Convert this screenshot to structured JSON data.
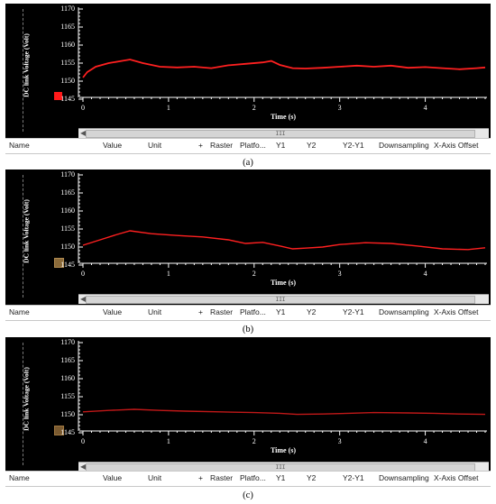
{
  "panels": [
    {
      "caption": "(a)",
      "ylabel": "DC link Voltage (Volt)",
      "yticks": [
        "1170",
        "1165",
        "1160",
        "1155",
        "1150",
        "1145"
      ],
      "xticks": [
        "0",
        "1",
        "2",
        "3",
        "4"
      ],
      "xlabel": "Time (s)",
      "marker_color": "#ff1a1a",
      "scroll_thumb": "III",
      "scroll_left": "◀",
      "columns": [
        "Name",
        "Value",
        "Unit",
        "+",
        "Raster",
        "Platfo...",
        "Y1",
        "Y2",
        "Y2-Y1",
        "Downsampling",
        "X-Axis Offset"
      ]
    },
    {
      "caption": "(b)",
      "ylabel": "DC link Voltage (Volt)",
      "yticks": [
        "1170",
        "1165",
        "1160",
        "1155",
        "1150",
        "1145"
      ],
      "xticks": [
        "0",
        "1",
        "2",
        "3",
        "4"
      ],
      "xlabel": "Time (s)",
      "marker_color": "#8a6a3a",
      "scroll_thumb": "III",
      "scroll_left": "◀",
      "columns": [
        "Name",
        "Value",
        "Unit",
        "+",
        "Raster",
        "Platfo...",
        "Y1",
        "Y2",
        "Y2-Y1",
        "Downsampling",
        "X-Axis Offset"
      ]
    },
    {
      "caption": "(c)",
      "ylabel": "DC link Voltage (Volt)",
      "yticks": [
        "1170",
        "1165",
        "1160",
        "1155",
        "1150",
        "1145"
      ],
      "xticks": [
        "0",
        "1",
        "2",
        "3",
        "4"
      ],
      "xlabel": "Time (s)",
      "marker_color": "#7a5a30",
      "scroll_thumb": "III",
      "scroll_left": "◀",
      "columns": [
        "Name",
        "Value",
        "Unit",
        "+",
        "Raster",
        "Platfo...",
        "Y1",
        "Y2",
        "Y2-Y1",
        "Downsampling",
        "X-Axis Offset"
      ]
    }
  ],
  "chart_data": [
    {
      "type": "line",
      "ylabel": "DC link Voltage (Volt)",
      "xlabel": "Time (s)",
      "ylim": [
        1145,
        1170
      ],
      "xlim": [
        0,
        4.7
      ],
      "series": [
        {
          "color": "#ff2020",
          "x": [
            0,
            0.05,
            0.15,
            0.3,
            0.45,
            0.55,
            0.7,
            0.9,
            1.1,
            1.3,
            1.5,
            1.7,
            1.9,
            2.1,
            2.2,
            2.3,
            2.45,
            2.6,
            2.8,
            3.0,
            3.2,
            3.4,
            3.6,
            3.8,
            4.0,
            4.2,
            4.4,
            4.6,
            4.7
          ],
          "y": [
            1151,
            1152.5,
            1154,
            1155,
            1155.6,
            1156,
            1155,
            1154,
            1153.8,
            1154,
            1153.6,
            1154.4,
            1154.8,
            1155.2,
            1155.6,
            1154.5,
            1153.6,
            1153.5,
            1153.7,
            1154,
            1154.3,
            1154,
            1154.3,
            1153.7,
            1153.9,
            1153.6,
            1153.3,
            1153.6,
            1153.8
          ]
        }
      ]
    },
    {
      "type": "line",
      "ylabel": "DC link Voltage (Volt)",
      "xlabel": "Time (s)",
      "ylim": [
        1145,
        1170
      ],
      "xlim": [
        0,
        4.7
      ],
      "series": [
        {
          "color": "#ff2020",
          "x": [
            0,
            0.2,
            0.4,
            0.55,
            0.8,
            1.1,
            1.4,
            1.7,
            1.9,
            2.1,
            2.3,
            2.45,
            2.6,
            2.8,
            3.0,
            3.3,
            3.6,
            3.9,
            4.2,
            4.5,
            4.7
          ],
          "y": [
            1150.5,
            1152,
            1153.5,
            1154.5,
            1153.7,
            1153.2,
            1152.8,
            1152,
            1151,
            1151.3,
            1150.3,
            1149.5,
            1149.7,
            1150,
            1150.7,
            1151.2,
            1151,
            1150.3,
            1149.5,
            1149.3,
            1149.8
          ]
        }
      ]
    },
    {
      "type": "line",
      "ylabel": "DC link Voltage (Volt)",
      "xlabel": "Time (s)",
      "ylim": [
        1145,
        1170
      ],
      "xlim": [
        0,
        4.7
      ],
      "series": [
        {
          "color": "#c01818",
          "x": [
            0,
            0.3,
            0.6,
            0.9,
            1.2,
            1.6,
            2.0,
            2.3,
            2.5,
            2.8,
            3.1,
            3.4,
            3.8,
            4.1,
            4.4,
            4.7
          ],
          "y": [
            1150.8,
            1151.2,
            1151.5,
            1151.2,
            1151,
            1150.8,
            1150.6,
            1150.4,
            1150.1,
            1150.2,
            1150.4,
            1150.6,
            1150.5,
            1150.4,
            1150.2,
            1150.1
          ]
        }
      ]
    }
  ]
}
